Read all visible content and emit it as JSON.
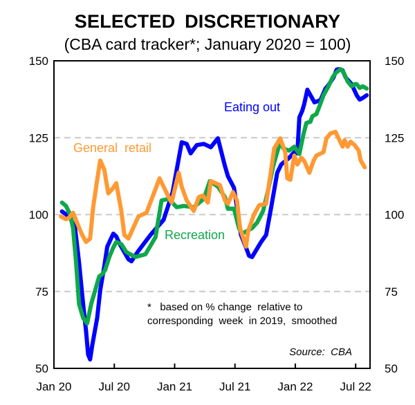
{
  "chart_data": {
    "type": "line",
    "title": "SELECTED  DISCRETIONARY",
    "subtitle": "(CBA card tracker*; January 2020 = 100)",
    "xlabel": "",
    "ylabel": "",
    "x_unit": "months since Jan 2020",
    "xlim": [
      0,
      31.5
    ],
    "ylim": [
      50,
      150
    ],
    "y_ticks": [
      50,
      75,
      100,
      125,
      150
    ],
    "y_tick_labels": [
      "50",
      "75",
      "100",
      "125",
      "150"
    ],
    "x_ticks": [
      0,
      6,
      12,
      18,
      24,
      30
    ],
    "x_tick_labels": [
      "Jan 20",
      "Jul 20",
      "Jan 21",
      "Jul 21",
      "Jan 22",
      "Jul 22"
    ],
    "gridlines": "dashed horizontal at 75, 100, 125",
    "footnote_lines": [
      "*   based on % change  relative to",
      "corresponding  week  in 2019,  smoothed"
    ],
    "source": "Source:  CBA",
    "series": [
      {
        "name": "Eating out",
        "color": "#0000ff",
        "points": [
          [
            0.8,
            101.0
          ],
          [
            1.2,
            100.1
          ],
          [
            1.6,
            99.0
          ],
          [
            2.1,
            95.6
          ],
          [
            2.5,
            84.4
          ],
          [
            2.9,
            70.9
          ],
          [
            3.2,
            61.9
          ],
          [
            3.4,
            54.5
          ],
          [
            3.6,
            52.9
          ],
          [
            3.8,
            57.4
          ],
          [
            4.3,
            66.4
          ],
          [
            4.6,
            75.4
          ],
          [
            5.0,
            83.1
          ],
          [
            5.3,
            89.6
          ],
          [
            5.9,
            93.8
          ],
          [
            6.2,
            92.9
          ],
          [
            6.5,
            90.7
          ],
          [
            6.9,
            88.4
          ],
          [
            7.4,
            85.5
          ],
          [
            7.7,
            84.8
          ],
          [
            8.4,
            88.2
          ],
          [
            9.6,
            93.4
          ],
          [
            10.9,
            98.3
          ],
          [
            11.8,
            107.3
          ],
          [
            12.7,
            123.5
          ],
          [
            13.2,
            123.0
          ],
          [
            13.6,
            119.9
          ],
          [
            14.2,
            122.6
          ],
          [
            14.9,
            123.0
          ],
          [
            15.6,
            121.9
          ],
          [
            16.3,
            124.8
          ],
          [
            17.0,
            115.8
          ],
          [
            17.3,
            112.5
          ],
          [
            17.9,
            108.7
          ],
          [
            18.2,
            102.4
          ],
          [
            18.6,
            93.4
          ],
          [
            19.1,
            89.3
          ],
          [
            19.4,
            86.6
          ],
          [
            19.7,
            86.2
          ],
          [
            20.1,
            88.4
          ],
          [
            20.6,
            91.1
          ],
          [
            21.1,
            93.4
          ],
          [
            21.6,
            102.4
          ],
          [
            22.2,
            113.6
          ],
          [
            22.6,
            116.3
          ],
          [
            23.4,
            118.5
          ],
          [
            23.9,
            120.3
          ],
          [
            24.2,
            119.9
          ],
          [
            24.4,
            131.6
          ],
          [
            24.7,
            133.8
          ],
          [
            24.9,
            136.1
          ],
          [
            25.2,
            140.6
          ],
          [
            25.6,
            138.3
          ],
          [
            25.9,
            136.5
          ],
          [
            26.5,
            137.2
          ],
          [
            27.0,
            141.0
          ],
          [
            27.3,
            142.1
          ],
          [
            27.8,
            144.6
          ],
          [
            28.1,
            147.1
          ],
          [
            28.3,
            147.3
          ],
          [
            28.7,
            146.9
          ],
          [
            29.0,
            144.6
          ],
          [
            29.6,
            142.4
          ],
          [
            30.1,
            138.8
          ],
          [
            30.4,
            137.4
          ],
          [
            30.7,
            137.9
          ],
          [
            31.1,
            138.8
          ]
        ]
      },
      {
        "name": "Recreation",
        "color": "#0fa84a",
        "points": [
          [
            0.8,
            103.9
          ],
          [
            1.2,
            102.8
          ],
          [
            1.6,
            100.1
          ],
          [
            1.9,
            95.6
          ],
          [
            2.2,
            84.4
          ],
          [
            2.5,
            70.9
          ],
          [
            2.9,
            66.4
          ],
          [
            3.3,
            64.6
          ],
          [
            3.7,
            70.9
          ],
          [
            4.1,
            75.4
          ],
          [
            4.5,
            79.9
          ],
          [
            4.8,
            80.6
          ],
          [
            5.1,
            82.1
          ],
          [
            5.5,
            86.2
          ],
          [
            5.9,
            89.3
          ],
          [
            6.2,
            91.1
          ],
          [
            6.7,
            90.4
          ],
          [
            7.2,
            87.8
          ],
          [
            8.1,
            86.2
          ],
          [
            9.1,
            87.1
          ],
          [
            10.1,
            92.7
          ],
          [
            10.7,
            104.6
          ],
          [
            11.4,
            105.1
          ],
          [
            12.2,
            102.4
          ],
          [
            12.9,
            102.8
          ],
          [
            13.9,
            102.4
          ],
          [
            14.9,
            105.1
          ],
          [
            15.5,
            110.9
          ],
          [
            16.3,
            109.1
          ],
          [
            17.0,
            105.7
          ],
          [
            17.3,
            101.9
          ],
          [
            17.9,
            101.9
          ],
          [
            18.4,
            95.6
          ],
          [
            18.7,
            93.8
          ],
          [
            19.1,
            94.5
          ],
          [
            19.7,
            95.6
          ],
          [
            20.2,
            97.4
          ],
          [
            20.8,
            101.2
          ],
          [
            21.3,
            108.0
          ],
          [
            21.8,
            115.8
          ],
          [
            22.5,
            123.7
          ],
          [
            22.8,
            121.5
          ],
          [
            23.4,
            120.8
          ],
          [
            23.9,
            122.1
          ],
          [
            24.4,
            119.7
          ],
          [
            24.8,
            126.0
          ],
          [
            25.1,
            129.8
          ],
          [
            25.5,
            130.2
          ],
          [
            25.7,
            132.0
          ],
          [
            26.1,
            132.7
          ],
          [
            26.5,
            136.1
          ],
          [
            26.8,
            138.8
          ],
          [
            27.3,
            141.7
          ],
          [
            27.7,
            144.6
          ],
          [
            28.0,
            146.0
          ],
          [
            28.5,
            147.3
          ],
          [
            28.8,
            146.2
          ],
          [
            29.2,
            143.3
          ],
          [
            29.6,
            141.7
          ],
          [
            29.9,
            142.4
          ],
          [
            30.1,
            142.4
          ],
          [
            30.4,
            141.2
          ],
          [
            30.7,
            141.7
          ],
          [
            31.1,
            141.0
          ]
        ]
      },
      {
        "name": "General  retail",
        "color": "#ff9933",
        "points": [
          [
            0.7,
            99.4
          ],
          [
            1.2,
            98.5
          ],
          [
            1.5,
            99.0
          ],
          [
            1.9,
            100.6
          ],
          [
            2.3,
            97.4
          ],
          [
            2.8,
            93.4
          ],
          [
            3.2,
            91.1
          ],
          [
            3.6,
            92.2
          ],
          [
            3.9,
            102.4
          ],
          [
            4.3,
            111.3
          ],
          [
            4.6,
            117.6
          ],
          [
            5.0,
            114.7
          ],
          [
            5.4,
            106.9
          ],
          [
            5.9,
            108.7
          ],
          [
            6.2,
            110.2
          ],
          [
            6.7,
            101.2
          ],
          [
            7.0,
            93.4
          ],
          [
            7.4,
            92.2
          ],
          [
            8.4,
            99.4
          ],
          [
            9.2,
            100.6
          ],
          [
            10.5,
            111.8
          ],
          [
            11.3,
            106.4
          ],
          [
            11.7,
            103.9
          ],
          [
            12.4,
            113.6
          ],
          [
            12.7,
            109.1
          ],
          [
            13.2,
            104.6
          ],
          [
            13.9,
            101.2
          ],
          [
            14.4,
            105.7
          ],
          [
            14.8,
            106.2
          ],
          [
            15.3,
            103.9
          ],
          [
            15.6,
            110.9
          ],
          [
            16.5,
            109.6
          ],
          [
            17.0,
            104.6
          ],
          [
            17.3,
            103.5
          ],
          [
            17.8,
            107.3
          ],
          [
            18.2,
            104.6
          ],
          [
            18.5,
            95.6
          ],
          [
            19.1,
            89.6
          ],
          [
            19.3,
            94.5
          ],
          [
            19.9,
            100.1
          ],
          [
            20.4,
            103.0
          ],
          [
            21.1,
            103.5
          ],
          [
            21.6,
            114.7
          ],
          [
            21.9,
            121.5
          ],
          [
            22.5,
            124.8
          ],
          [
            23.0,
            120.3
          ],
          [
            23.2,
            111.8
          ],
          [
            23.5,
            111.3
          ],
          [
            23.9,
            119.2
          ],
          [
            24.2,
            116.3
          ],
          [
            24.6,
            118.5
          ],
          [
            24.9,
            117.4
          ],
          [
            25.4,
            113.6
          ],
          [
            25.8,
            117.4
          ],
          [
            26.1,
            119.2
          ],
          [
            26.8,
            120.3
          ],
          [
            27.1,
            124.8
          ],
          [
            27.5,
            126.4
          ],
          [
            28.0,
            126.9
          ],
          [
            28.3,
            124.8
          ],
          [
            28.7,
            122.1
          ],
          [
            28.9,
            124.2
          ],
          [
            29.2,
            122.1
          ],
          [
            29.5,
            123.7
          ],
          [
            29.9,
            122.6
          ],
          [
            30.3,
            120.8
          ],
          [
            30.5,
            117.6
          ],
          [
            30.9,
            115.4
          ]
        ]
      }
    ],
    "annotations": [
      {
        "text": "Eating out",
        "series": "Eating out"
      },
      {
        "text": "General  retail",
        "series": "General  retail"
      },
      {
        "text": "Recreation",
        "series": "Recreation"
      }
    ]
  },
  "colors": {
    "eating_out": "#0000ff",
    "recreation": "#0fa84a",
    "retail": "#ff9933",
    "grid": "#c8c8c8",
    "axis": "#000000"
  }
}
